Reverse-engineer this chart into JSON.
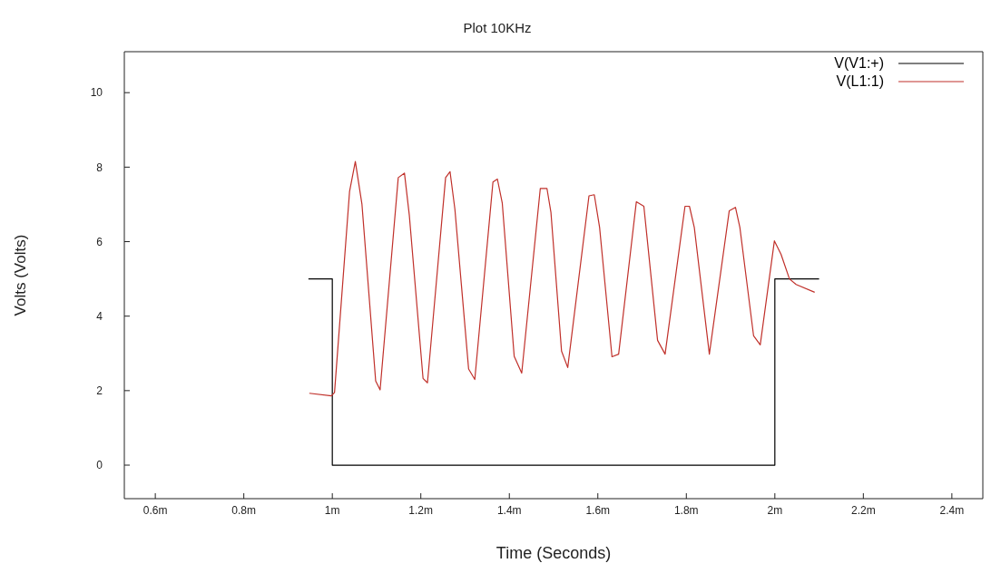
{
  "chart_data": {
    "type": "line",
    "title": "Plot 10KHz",
    "xlabel": "Time (Seconds)",
    "ylabel": "Volts (Volts)",
    "xlim": [
      0.53,
      2.47
    ],
    "xticks": [
      {
        "value": 0.6,
        "label": "0.6m"
      },
      {
        "value": 0.8,
        "label": "0.8m"
      },
      {
        "value": 1,
        "label": "1m"
      },
      {
        "value": 1.2,
        "label": "1.2m"
      },
      {
        "value": 1.4,
        "label": "1.4m"
      },
      {
        "value": 1.6,
        "label": "1.6m"
      },
      {
        "value": 1.8,
        "label": "1.8m"
      },
      {
        "value": 2,
        "label": "2m"
      },
      {
        "value": 2.2,
        "label": "2.2m"
      },
      {
        "value": 2.4,
        "label": "2.4m"
      }
    ],
    "ylim": [
      -0.9,
      11.1
    ],
    "yticks": [
      0,
      2,
      4,
      6,
      8,
      10
    ],
    "legend": "top right",
    "marker": "none",
    "line_style": "solid",
    "series": [
      {
        "name": "V(V1:+)",
        "color": "#000000",
        "x": [
          0.946,
          1,
          1,
          2,
          2,
          2.1
        ],
        "values": [
          5,
          5,
          0,
          0,
          5,
          5
        ]
      },
      {
        "name": "V(L1:1)",
        "color": "#c0302a",
        "x": [
          0.948,
          0.998,
          1.005,
          1.039,
          1.052,
          1.067,
          1.098,
          1.108,
          1.149,
          1.163,
          1.174,
          1.205,
          1.215,
          1.256,
          1.266,
          1.277,
          1.308,
          1.322,
          1.363,
          1.373,
          1.384,
          1.411,
          1.428,
          1.47,
          1.485,
          1.494,
          1.518,
          1.532,
          1.58,
          1.592,
          1.604,
          1.632,
          1.647,
          1.687,
          1.704,
          1.735,
          1.752,
          1.797,
          1.807,
          1.818,
          1.852,
          1.897,
          1.911,
          1.921,
          1.952,
          1.967,
          1.999,
          2.014,
          2.033,
          2.048,
          2.09
        ],
        "values": [
          1.93,
          1.86,
          1.95,
          7.35,
          8.15,
          7.0,
          2.26,
          2.02,
          7.72,
          7.84,
          6.71,
          2.33,
          2.21,
          7.72,
          7.88,
          6.87,
          2.58,
          2.3,
          7.6,
          7.68,
          7.04,
          2.92,
          2.47,
          7.43,
          7.43,
          6.79,
          3.06,
          2.62,
          7.23,
          7.26,
          6.38,
          2.91,
          2.98,
          7.07,
          6.95,
          3.35,
          2.98,
          6.95,
          6.95,
          6.38,
          2.98,
          6.83,
          6.92,
          6.38,
          3.47,
          3.23,
          6.02,
          5.66,
          5.0,
          4.85,
          4.64
        ]
      }
    ]
  }
}
